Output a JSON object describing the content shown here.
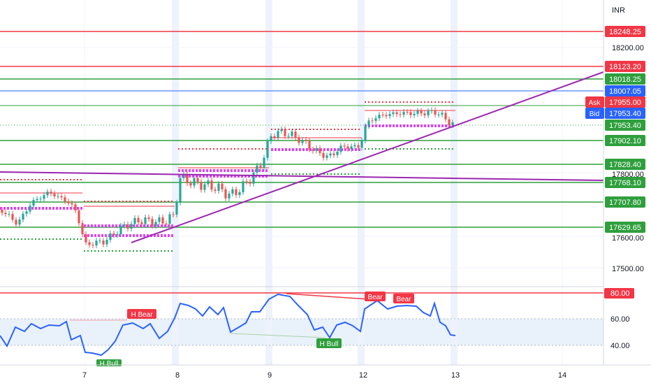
{
  "currency_label": "INR",
  "colors": {
    "red": "#f23645",
    "green": "#2e9f3c",
    "blue": "#2962ff",
    "purple": "#9c27b0",
    "magenta": "#e040fb",
    "candle_up": "#26a69a",
    "candle_down": "#ef5350",
    "rsi": "#2962ff"
  },
  "price_axis": {
    "ticks": [
      "18200.00",
      "17800.00",
      "17600.00",
      "17500.00"
    ]
  },
  "price_levels": [
    {
      "label": "18248.25",
      "color": "red"
    },
    {
      "label": "18123.20",
      "color": "red"
    },
    {
      "label": "18018.25",
      "color": "green"
    },
    {
      "label": "18007.05",
      "color": "blue"
    },
    {
      "label": "17955.00",
      "color": "red",
      "tag": "Ask"
    },
    {
      "label": "17953.40",
      "color": "blue",
      "tag": "Bid"
    },
    {
      "label": "17953.40",
      "color": "green"
    },
    {
      "label": "17902.10",
      "color": "green"
    },
    {
      "label": "17828.40",
      "color": "green"
    },
    {
      "label": "17768.10",
      "color": "green"
    },
    {
      "label": "17707.80",
      "color": "green"
    },
    {
      "label": "17629.65",
      "color": "green"
    }
  ],
  "rsi_axis": {
    "ticks": [
      "60.00",
      "40.00"
    ],
    "level_label": "80.00"
  },
  "rsi_labels": [
    {
      "text": "H Bear",
      "color": "red"
    },
    {
      "text": "Bear",
      "color": "red"
    },
    {
      "text": "Bear",
      "color": "red"
    },
    {
      "text": "H Bull",
      "color": "green"
    },
    {
      "text": "H Bull",
      "color": "green"
    }
  ],
  "time_axis": {
    "ticks": [
      "7",
      "8",
      "9",
      "12",
      "13",
      "14"
    ]
  }
}
